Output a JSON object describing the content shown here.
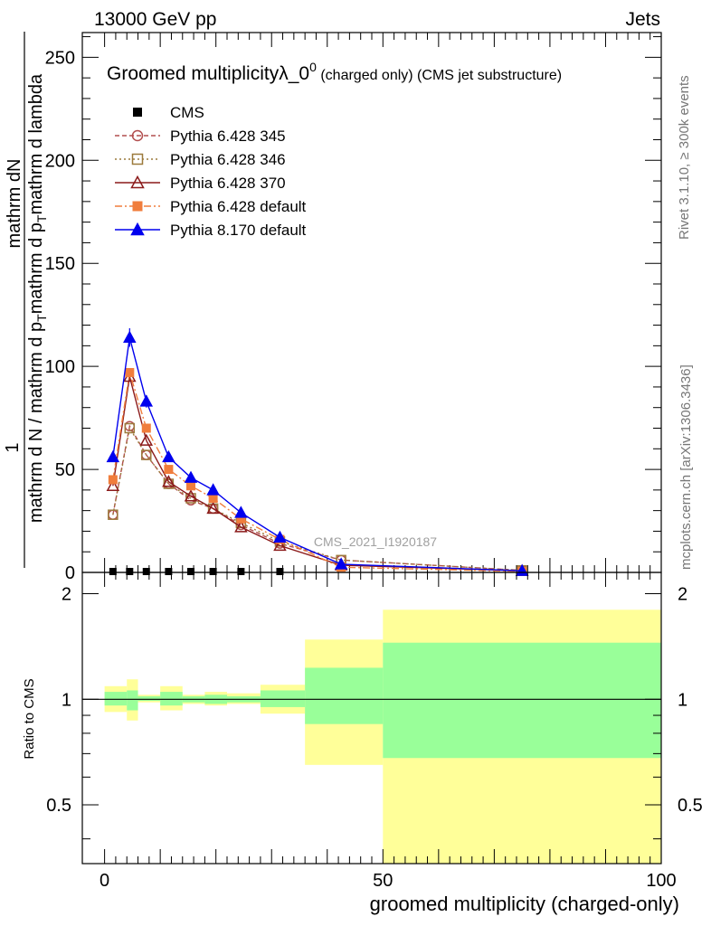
{
  "header": {
    "energy_label": "13000 GeV pp",
    "category_label": "Jets"
  },
  "side": {
    "rivet_label": "Rivet 3.1.10, ≥ 300k events",
    "mcplots_label": "mcplots.cern.ch [arXiv:1306.3436]"
  },
  "chart_data": [
    {
      "type": "line",
      "panel": "main",
      "title_main": "Groomed multiplicityλ_0",
      "title_sup": "0",
      "title_tail": " (charged only) (CMS jet substructure)",
      "ylabel_fraction": "1",
      "ylabel_top": "mathrm dN",
      "ylabel_bottom": "mathrm d N / mathrm d p",
      "ylabel_bottom_sub": "T",
      "ylabel_bottom_tail": "mathrm d p",
      "ylabel_bottom_sub2": "T",
      "ylabel_bottom_tail2": "mathrm d lambda",
      "analysis_label": "CMS_2021_I1920187",
      "xlim": [
        -4,
        100
      ],
      "ylim": [
        0,
        262
      ],
      "yticks": [
        0,
        50,
        100,
        150,
        200,
        250
      ],
      "ytick_labels": [
        "0",
        "50",
        "100",
        "150",
        "200",
        "250"
      ],
      "series": [
        {
          "name": "CMS",
          "color": "#000000",
          "marker": "square-filled",
          "line": "none",
          "x": [
            1.5,
            4.5,
            7.5,
            11.5,
            15.5,
            19.5,
            24.5,
            31.5
          ],
          "y": [
            0,
            0,
            0,
            0,
            0,
            0,
            0,
            0
          ]
        },
        {
          "name": "Pythia 6.428 345",
          "color": "#b24e4e",
          "marker": "circle-open",
          "line": "dashed",
          "x": [
            1.5,
            4.5,
            7.5,
            11.5,
            15.5,
            19.5,
            24.5,
            31.5,
            42.5,
            75
          ],
          "y": [
            28,
            71,
            57,
            43,
            35,
            31,
            23,
            14,
            6,
            1
          ]
        },
        {
          "name": "Pythia 6.428 346",
          "color": "#9c7a3c",
          "marker": "square-open",
          "line": "dotted",
          "x": [
            1.5,
            4.5,
            7.5,
            11.5,
            15.5,
            19.5,
            24.5,
            31.5,
            42.5,
            75
          ],
          "y": [
            28,
            70,
            57,
            43,
            36,
            31,
            24,
            15,
            6,
            1
          ]
        },
        {
          "name": "Pythia 6.428 370",
          "color": "#8b1a1a",
          "marker": "triangle-open",
          "line": "solid",
          "x": [
            1.5,
            4.5,
            7.5,
            11.5,
            15.5,
            19.5,
            24.5,
            31.5,
            42.5,
            75
          ],
          "y": [
            42,
            95,
            64,
            44,
            37,
            31,
            22,
            13,
            3.5,
            0.8
          ]
        },
        {
          "name": "Pythia 6.428 default",
          "color": "#f07d3c",
          "marker": "square-filled",
          "line": "dashdot",
          "x": [
            1.5,
            4.5,
            7.5,
            11.5,
            15.5,
            19.5,
            24.5,
            31.5,
            42.5,
            75
          ],
          "y": [
            45,
            97,
            70,
            50,
            42,
            36,
            26,
            16,
            2.5,
            0.5
          ]
        },
        {
          "name": "Pythia 8.170 default",
          "color": "#0000ee",
          "marker": "triangle-filled",
          "line": "solid",
          "x": [
            1.5,
            4.5,
            7.5,
            11.5,
            15.5,
            19.5,
            24.5,
            31.5,
            42.5,
            75
          ],
          "y": [
            56,
            114,
            83,
            56,
            46,
            40,
            29,
            17,
            4,
            0.8
          ],
          "yerr": [
            2,
            4.5,
            3,
            2,
            2,
            2,
            1.5,
            1,
            0.5,
            0.2
          ]
        }
      ]
    },
    {
      "type": "area",
      "panel": "ratio",
      "ylabel": "Ratio to CMS",
      "xlabel": "groomed multiplicity (charged-only)",
      "xlim": [
        -4,
        100
      ],
      "ylim": [
        0.34,
        2.3
      ],
      "yticks": [
        0.5,
        1,
        2
      ],
      "ytick_labels": [
        "0.5",
        "1",
        "2"
      ],
      "xticks": [
        0,
        50,
        100
      ],
      "xtick_labels": [
        "0",
        "50",
        "100"
      ],
      "reference": 1,
      "bands_bins": [
        [
          0,
          4
        ],
        [
          4,
          6
        ],
        [
          6,
          10
        ],
        [
          10,
          14
        ],
        [
          14,
          18
        ],
        [
          18,
          22
        ],
        [
          22,
          28
        ],
        [
          28,
          36
        ],
        [
          36,
          50
        ],
        [
          50,
          100
        ]
      ],
      "band_inner": [
        [
          0.96,
          1.05
        ],
        [
          0.93,
          1.06
        ],
        [
          0.99,
          1.02
        ],
        [
          0.96,
          1.05
        ],
        [
          0.98,
          1.02
        ],
        [
          0.97,
          1.03
        ],
        [
          0.98,
          1.02
        ],
        [
          0.95,
          1.06
        ],
        [
          0.85,
          1.23
        ],
        [
          0.68,
          1.45
        ]
      ],
      "band_outer": [
        [
          0.92,
          1.09
        ],
        [
          0.87,
          1.14
        ],
        [
          0.98,
          1.03
        ],
        [
          0.93,
          1.09
        ],
        [
          0.97,
          1.03
        ],
        [
          0.96,
          1.05
        ],
        [
          0.97,
          1.04
        ],
        [
          0.91,
          1.1
        ],
        [
          0.65,
          1.48
        ],
        [
          0.34,
          1.8
        ]
      ],
      "inner_color": "#99ff99",
      "outer_color": "#ffff99"
    }
  ]
}
